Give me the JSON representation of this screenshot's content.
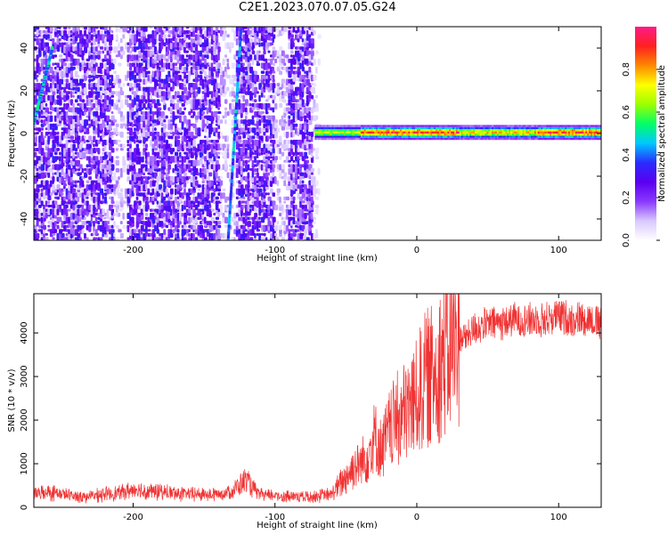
{
  "figure": {
    "title": "C2E1.2023.070.07.05.G24"
  },
  "colors": {
    "snr_line": "#f03232",
    "axis": "#000000",
    "background": "#ffffff",
    "spectrogram_background": "#ffffff"
  },
  "colorbar": {
    "label": "Normalized spectral amplitude",
    "range": [
      0.0,
      1.0
    ],
    "ticks": [
      "0.0",
      "0.2",
      "0.4",
      "0.6",
      "0.8"
    ],
    "colormap": [
      "#ffffff",
      "#d8c8ff",
      "#8a38ff",
      "#5a00f0",
      "#2a2cff",
      "#00c8ff",
      "#00ff66",
      "#9cff00",
      "#ffff00",
      "#ff8800",
      "#ff2020",
      "#ff1a88"
    ]
  },
  "chart_data": [
    {
      "type": "heatmap",
      "title": "",
      "xlabel": "Height of straight line (km)",
      "ylabel": "Frequency (Hz)",
      "xlim": [
        -270,
        130
      ],
      "ylim": [
        -50,
        50
      ],
      "xticks": [
        "-200",
        "-100",
        "0",
        "100"
      ],
      "yticks": [
        "-40",
        "-20",
        "0",
        "20",
        "40"
      ],
      "grid": false,
      "features": {
        "noise_region_x": [
          -270,
          -65
        ],
        "noise_amplitude": 0.3,
        "signal_line_freq": 0,
        "signal_region_x": [
          -72,
          130
        ],
        "signal_amplitude_peak": 0.95,
        "diagonal_lines": [
          {
            "x_start": -270,
            "freq_start": 5,
            "x_end": -257,
            "freq_end": 40,
            "amplitude": 0.45
          },
          {
            "x_start": -133,
            "freq_start": -50,
            "x_end": -124,
            "freq_end": 48,
            "amplitude": 0.4
          }
        ],
        "pale_bands_x": [
          -210,
          -134,
          -97,
          -69
        ]
      }
    },
    {
      "type": "line",
      "title": "",
      "xlabel": "Height of straight line (km)",
      "ylabel": "SNR (10 * v/v)",
      "xlim": [
        -270,
        130
      ],
      "ylim": [
        0,
        4900
      ],
      "xticks": [
        "-200",
        "-100",
        "0",
        "100"
      ],
      "yticks": [
        "0",
        "1000",
        "2000",
        "3000",
        "4000"
      ],
      "grid": false,
      "series": [
        {
          "x": [
            -270,
            -260,
            -250,
            -240,
            -230,
            -220,
            -210,
            -200,
            -190,
            -180,
            -170,
            -160,
            -150,
            -140,
            -130,
            -125,
            -120,
            -115,
            -110,
            -100,
            -90,
            -80,
            -70,
            -60,
            -55,
            -50,
            -45,
            -40,
            -35,
            -30,
            -25,
            -20,
            -15,
            -10,
            -5,
            0,
            5,
            10,
            15,
            20,
            25,
            30,
            35,
            40,
            50,
            60,
            70,
            80,
            90,
            100,
            110,
            120,
            130
          ],
          "y": [
            300,
            350,
            300,
            250,
            250,
            300,
            330,
            400,
            370,
            350,
            320,
            300,
            300,
            300,
            380,
            500,
            650,
            400,
            280,
            270,
            250,
            250,
            260,
            300,
            500,
            700,
            900,
            1000,
            1200,
            1600,
            1300,
            1700,
            2000,
            2100,
            2300,
            2500,
            2900,
            3000,
            3250,
            3500,
            3700,
            3900,
            3900,
            4100,
            4200,
            4250,
            4300,
            4300,
            4300,
            4400,
            4300,
            4350,
            4200
          ]
        }
      ]
    }
  ]
}
